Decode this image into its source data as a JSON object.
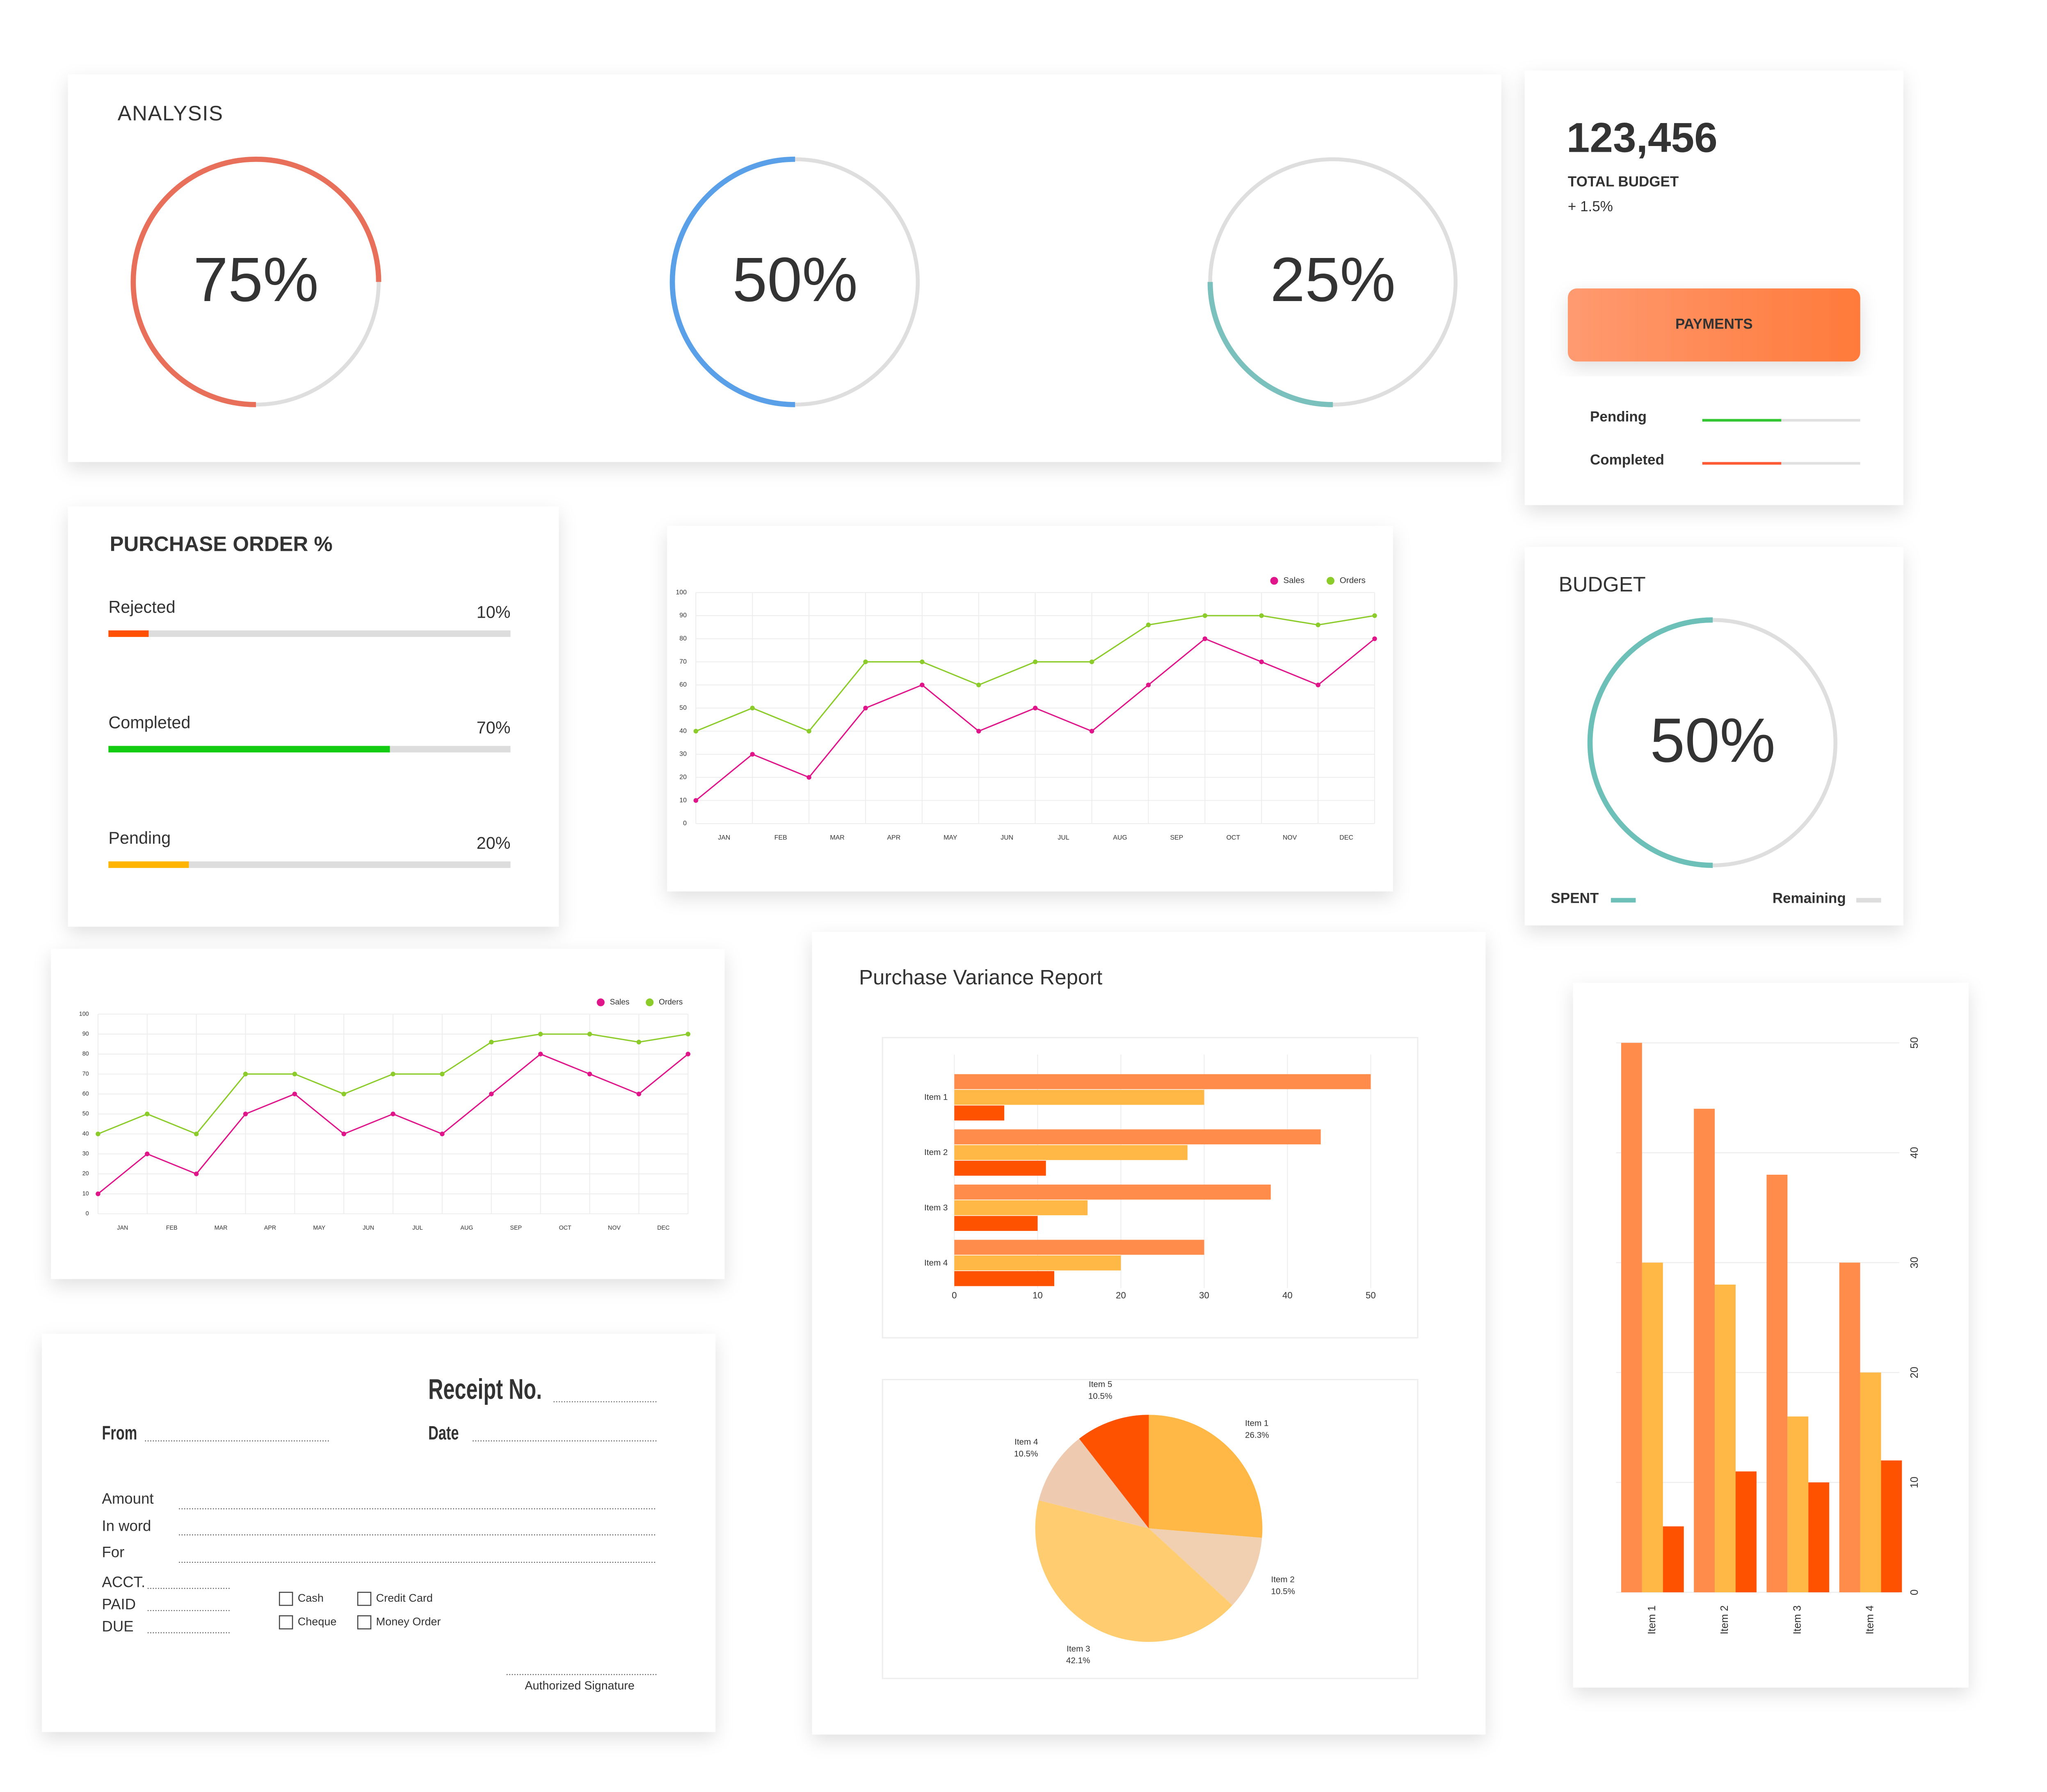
{
  "analysis": {
    "title": "ANALYSIS",
    "gauges": [
      {
        "value": 75,
        "label": "75%",
        "color": "#e8705a"
      },
      {
        "value": 50,
        "label": "50%",
        "color": "#5aa0e8"
      },
      {
        "value": 25,
        "label": "25%",
        "color": "#7ac0bc"
      }
    ]
  },
  "total_budget": {
    "amount": "123,456",
    "label": "TOTAL BUDGET",
    "change": "+ 1.5%",
    "button": "PAYMENTS",
    "bars": [
      {
        "name": "Pending",
        "value": 50,
        "color": "#33c633"
      },
      {
        "name": "Completed",
        "value": 50,
        "color": "#ff5a36"
      }
    ]
  },
  "purchase_order": {
    "title": "PURCHASE ORDER %",
    "items": [
      {
        "name": "Rejected",
        "value": 10,
        "value_label": "10%",
        "color": "#ff5000"
      },
      {
        "name": "Completed",
        "value": 70,
        "value_label": "70%",
        "color": "#11cc11"
      },
      {
        "name": "Pending",
        "value": 20,
        "value_label": "20%",
        "color": "#ffb400"
      }
    ]
  },
  "sales_orders_chart": {
    "type": "line",
    "categories": [
      "JAN",
      "FEB",
      "MAR",
      "APR",
      "MAY",
      "JUN",
      "JUL",
      "AUG",
      "SEP",
      "OCT",
      "NOV",
      "DEC",
      null
    ],
    "series": [
      {
        "name": "Sales",
        "color": "#e0158a",
        "values": [
          10,
          30,
          20,
          50,
          60,
          40,
          50,
          40,
          60,
          80,
          70,
          60,
          80
        ]
      },
      {
        "name": "Orders",
        "color": "#8ccc2a",
        "values": [
          40,
          50,
          40,
          70,
          70,
          60,
          70,
          70,
          86,
          90,
          90,
          86,
          90
        ]
      }
    ],
    "ylim": [
      0,
      100
    ],
    "yticks": [
      0,
      10,
      20,
      30,
      40,
      50,
      60,
      70,
      80,
      90,
      100
    ],
    "grid": true
  },
  "budget": {
    "title": "BUDGET",
    "value": 50,
    "label": "50%",
    "color": "#6cc0b8",
    "legend": [
      {
        "name": "SPENT",
        "color": "#6cc0b8"
      },
      {
        "name": "Remaining",
        "color": "#dddddd"
      }
    ]
  },
  "variance_report": {
    "title": "Purchase Variance  Report",
    "bar_chart": {
      "type": "bar",
      "categories": [
        "Item 1",
        "Item 2",
        "Item 3",
        "Item 4"
      ],
      "series": [
        {
          "color": "#ff8c4a",
          "values": [
            50,
            44,
            38,
            30
          ]
        },
        {
          "color": "#ffb845",
          "values": [
            30,
            28,
            16,
            20
          ]
        },
        {
          "color": "#ff5200",
          "values": [
            6,
            11,
            10,
            12
          ]
        }
      ],
      "xlim": [
        0,
        50
      ],
      "xticks": [
        0,
        10,
        20,
        30,
        40,
        50
      ]
    },
    "pie_chart": {
      "type": "pie",
      "categories": [
        "Item 1",
        "Item 2",
        "Item 3",
        "Item 4",
        "Item 5"
      ],
      "values": [
        26.3,
        10.5,
        42.1,
        10.5,
        10.5
      ],
      "value_labels": [
        "26.3%",
        "10.5%",
        "42.1%",
        "10.5%",
        "10.5%"
      ],
      "colors": [
        "#ffb845",
        "#f0d0b0",
        "#ffcd70",
        "#eecbb0",
        "#ff5200"
      ]
    }
  },
  "receipt": {
    "title": "Receipt No.",
    "from": "From",
    "date": "Date",
    "amount": "Amount",
    "in_word": "In word",
    "for": "For",
    "acct": "ACCT.",
    "paid": "PAID",
    "due": "DUE",
    "options": [
      "Cash",
      "Credit Card",
      "Cheque",
      "Money Order"
    ],
    "signature": "Authorized Signature"
  }
}
